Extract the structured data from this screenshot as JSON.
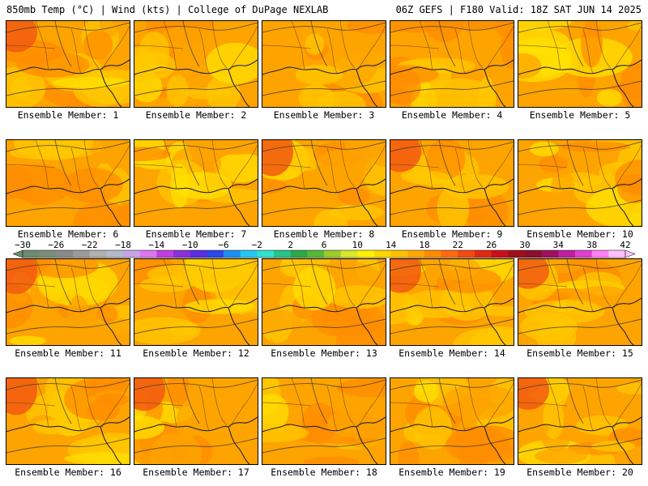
{
  "header": {
    "left_title": "850mb Temp (°C) | Wind (kts) | College of DuPage NEXLAB",
    "right_title": "06Z GEFS | F180 Valid: 18Z SAT JUN 14 2025"
  },
  "colorbar": {
    "labels": [
      "-30",
      "-26",
      "-22",
      "-18",
      "-14",
      "-10",
      "-6",
      "-2",
      "2",
      "6",
      "10",
      "14",
      "18",
      "22",
      "26",
      "30",
      "34",
      "38",
      "42"
    ],
    "colors": [
      "#6f8c70",
      "#7c8e7c",
      "#8a8a8a",
      "#9b9b9b",
      "#b0b0b0",
      "#b4b9cc",
      "#c6a6e6",
      "#dd77ee",
      "#c03fe0",
      "#8a30d8",
      "#5a2ee0",
      "#2b48e8",
      "#1f8ef0",
      "#25c7f0",
      "#30e0d0",
      "#28c48a",
      "#2ea84a",
      "#56b83a",
      "#9bcc2c",
      "#d8e82a",
      "#fff000",
      "#ffd600",
      "#ffc000",
      "#ffa800",
      "#ff8a00",
      "#ff6a10",
      "#f24a10",
      "#e02a10",
      "#c8101a",
      "#a0101a",
      "#8a1030",
      "#a01060",
      "#c020a0",
      "#e040d0",
      "#ff80f0",
      "#ffc0ff"
    ]
  },
  "members": [
    {
      "label": "Ensemble Member: 1"
    },
    {
      "label": "Ensemble Member: 2"
    },
    {
      "label": "Ensemble Member: 3"
    },
    {
      "label": "Ensemble Member: 4"
    },
    {
      "label": "Ensemble Member: 5"
    },
    {
      "label": "Ensemble Member: 6"
    },
    {
      "label": "Ensemble Member: 7"
    },
    {
      "label": "Ensemble Member: 8"
    },
    {
      "label": "Ensemble Member: 9"
    },
    {
      "label": "Ensemble Member: 10"
    },
    {
      "label": "Ensemble Member: 11"
    },
    {
      "label": "Ensemble Member: 12"
    },
    {
      "label": "Ensemble Member: 13"
    },
    {
      "label": "Ensemble Member: 14"
    },
    {
      "label": "Ensemble Member: 15"
    },
    {
      "label": "Ensemble Member: 16"
    },
    {
      "label": "Ensemble Member: 17"
    },
    {
      "label": "Ensemble Member: 18"
    },
    {
      "label": "Ensemble Member: 19"
    },
    {
      "label": "Ensemble Member: 20"
    }
  ],
  "palette": {
    "base": "#fda400",
    "warm": "#ff8c00",
    "hot": "#f25a10",
    "cool": "#ffc800",
    "cooler": "#ffe000"
  }
}
